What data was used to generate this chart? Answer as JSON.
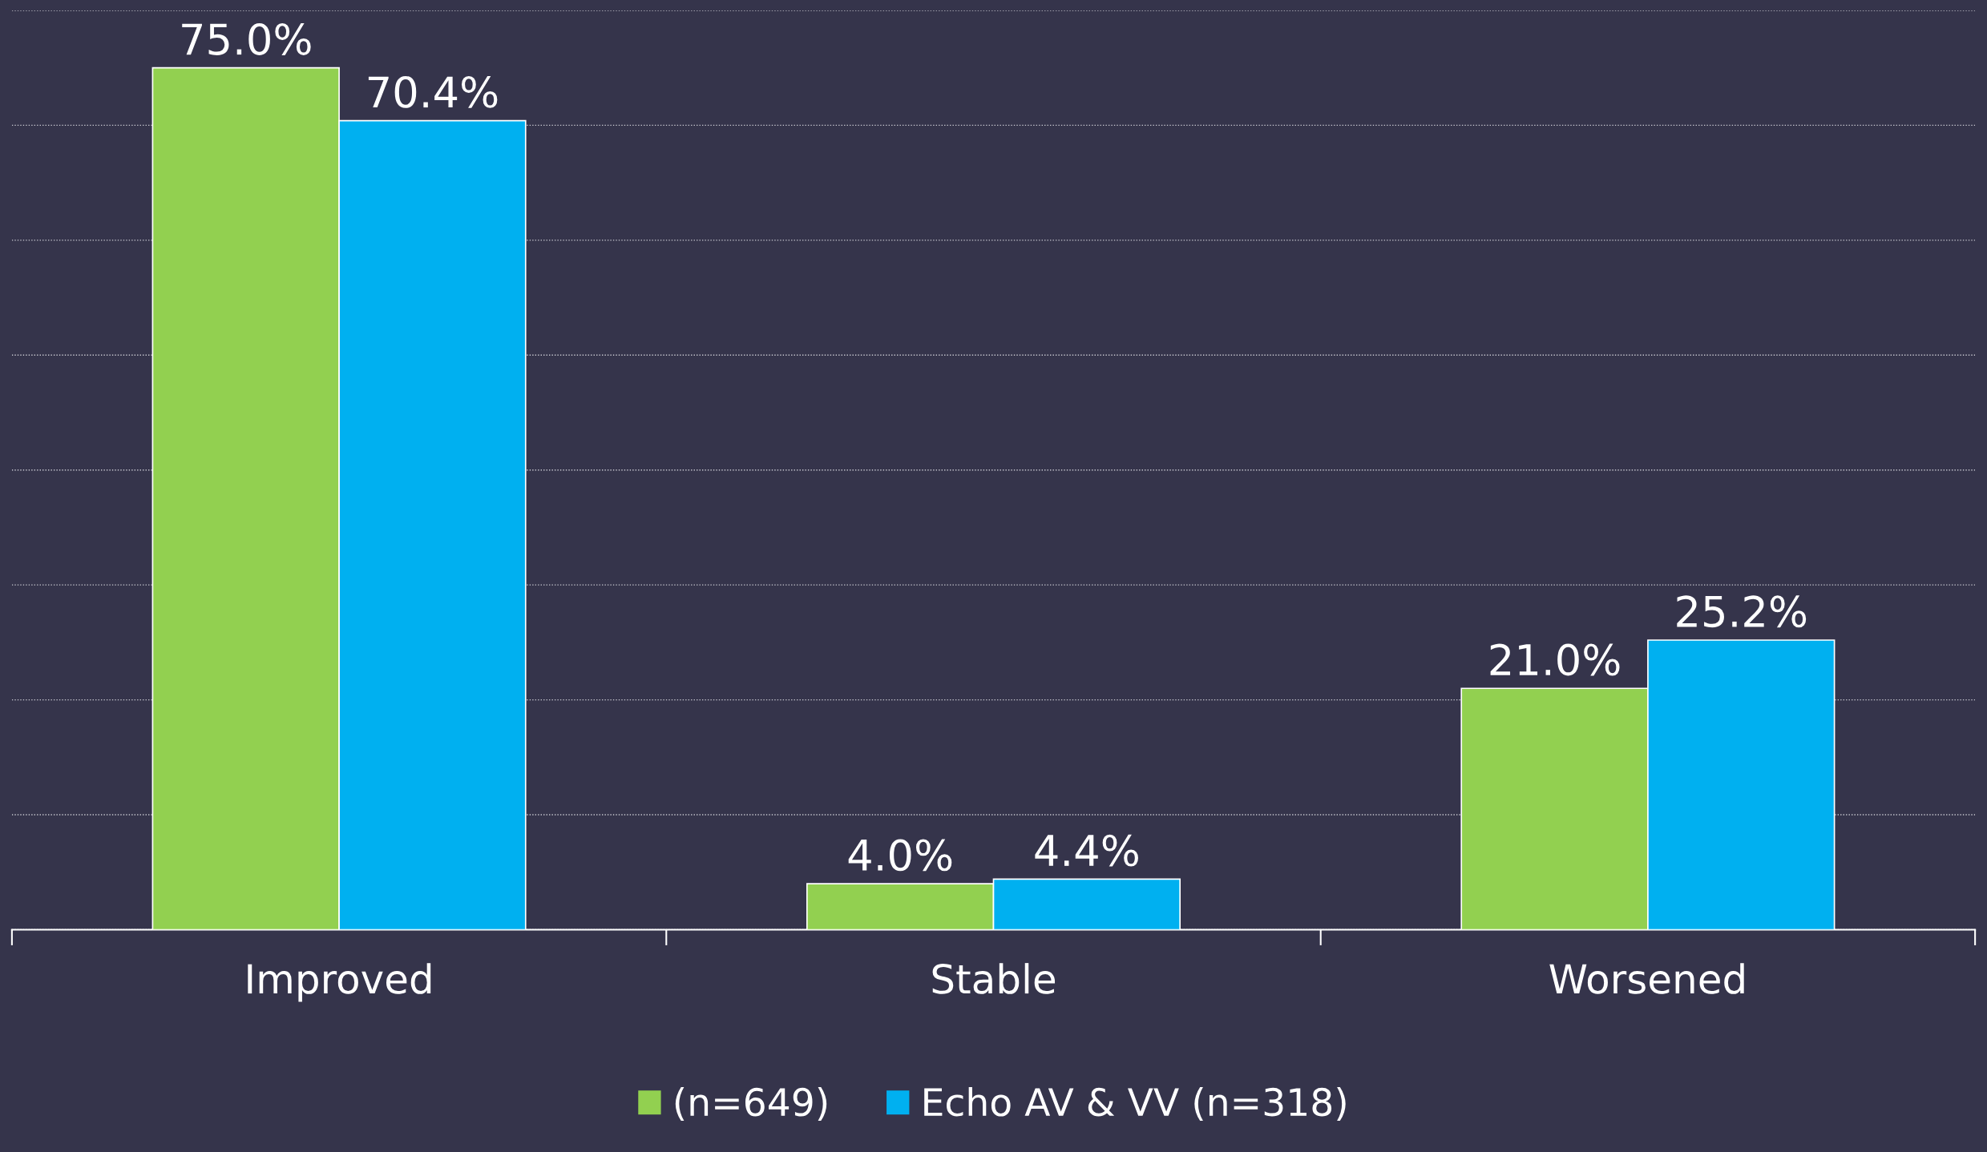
{
  "chart_data": {
    "type": "bar",
    "categories": [
      "Improved",
      "Stable",
      "Worsened"
    ],
    "series": [
      {
        "name": "(n=649)",
        "color": "#92d050",
        "values": [
          75.0,
          4.0,
          21.0
        ],
        "value_labels": [
          "75.0%",
          "4.0%",
          "21.0%"
        ]
      },
      {
        "name": "Echo AV & VV (n=318)",
        "color": "#00b0f0",
        "values": [
          70.4,
          4.4,
          25.2
        ],
        "value_labels": [
          "70.4%",
          "4.4%",
          "25.2%"
        ]
      }
    ],
    "ylim": [
      0,
      80
    ],
    "yticks": [
      {
        "value": 0,
        "label": null
      },
      {
        "value": 10,
        "label": null
      },
      {
        "value": 20,
        "label": null
      },
      {
        "value": 30,
        "label": null
      },
      {
        "value": 40,
        "label": null
      },
      {
        "value": 50,
        "label": null
      },
      {
        "value": 60,
        "label": null
      },
      {
        "value": 70,
        "label": null
      },
      {
        "value": 80,
        "label": null
      }
    ],
    "tick_labels": "x",
    "grid": "y",
    "legend": "bottom"
  }
}
